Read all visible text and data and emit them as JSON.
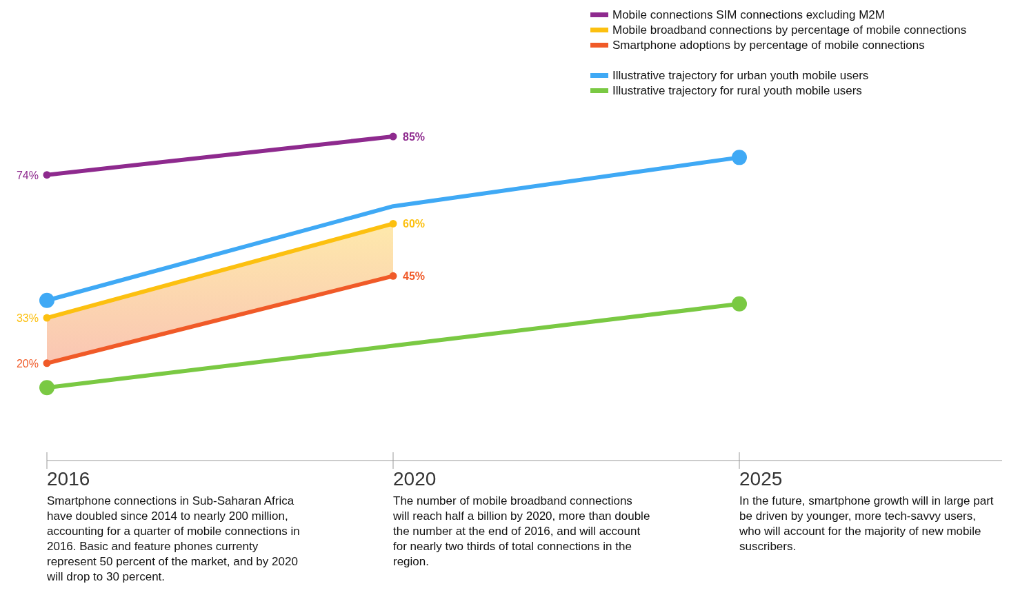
{
  "chart_data": {
    "type": "line",
    "categories": [
      "2016",
      "2020",
      "2025"
    ],
    "marker": "circle",
    "legend": "top right",
    "series": [
      {
        "name": "Mobile connections SIM connections excluding M2M",
        "color": "#8e2a8e",
        "values": [
          74,
          85,
          null
        ],
        "value_labels": [
          "74%",
          "85%",
          null
        ]
      },
      {
        "name": "Mobile broadband connections by percentage of mobile connections",
        "color": "#fcc010",
        "values": [
          33,
          60,
          null
        ],
        "value_labels": [
          "33%",
          "60%",
          null
        ],
        "lower": [
          20,
          45,
          null
        ],
        "upper": [
          33,
          60,
          null
        ]
      },
      {
        "name": "Smartphone adoptions by percentage of mobile connections",
        "color": "#f05a28",
        "values": [
          20,
          45,
          null
        ],
        "value_labels": [
          "20%",
          "45%",
          null
        ]
      },
      {
        "name": "Illustrative trajectory for urban youth mobile users",
        "color": "#3fa9f5",
        "values": [
          38,
          65,
          79
        ]
      },
      {
        "name": "Illustrative trajectory for rural youth mobile users",
        "color": "#7ac943",
        "values": [
          13,
          25,
          37
        ]
      }
    ],
    "annotations": [
      "Smartphone connections in Sub-Saharan Africa have doubled since 2014 to nearly 200 million, accounting for a quarter of mobile connections in 2016. Basic and feature phones currenty represent 50 percent of the market, and by 2020 will drop to 30 percent.",
      "The number of mobile broadband connections will reach half a billion by 2020, more than double the number at the end of 2016, and will account for nearly two thirds of total connections in the region.",
      "In the future, smartphone growth will in large part be driven by younger, more tech-savvy users, who will account for the majority of new mobile suscribers."
    ]
  }
}
